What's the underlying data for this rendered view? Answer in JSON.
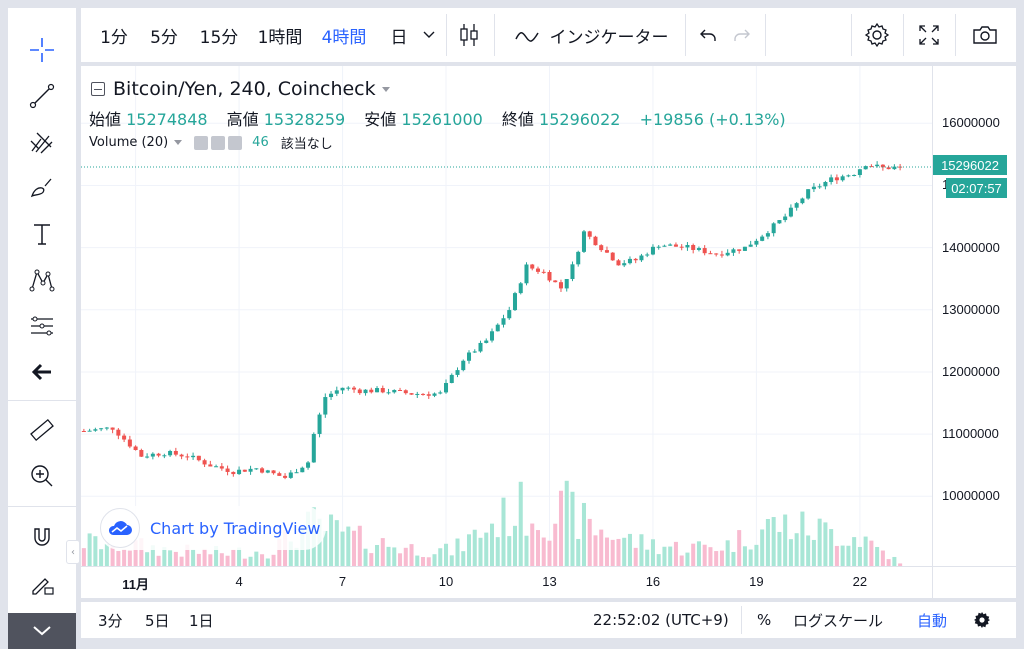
{
  "top_toolbar": {
    "intervals": [
      {
        "label": "1分",
        "active": false
      },
      {
        "label": "5分",
        "active": false
      },
      {
        "label": "15分",
        "active": false
      },
      {
        "label": "1時間",
        "active": false
      },
      {
        "label": "4時間",
        "active": true
      },
      {
        "label": "日",
        "active": false
      }
    ],
    "indicators_label": "インジケーター"
  },
  "legend": {
    "title": "Bitcoin/Yen, 240, Coincheck",
    "open_label": "始値",
    "open": "15274848",
    "high_label": "高値",
    "high": "15328259",
    "low_label": "安値",
    "low": "15261000",
    "close_label": "終値",
    "close": "15296022",
    "change": "+19856 (+0.13%)",
    "volume_label": "Volume (20)",
    "volume_value": "46",
    "volume_na": "該当なし"
  },
  "last_price_tag": "15296022",
  "countdown": "02:07:57",
  "watermark": "Chart by TradingView",
  "bottom_bar": {
    "ranges": [
      "3分",
      "5日",
      "1日"
    ],
    "clock": "22:52:02 (UTC+9)",
    "percent_label": "%",
    "log_label": "ログスケール",
    "auto_label": "自動"
  },
  "colors": {
    "up": "#26a69a",
    "down": "#ef5350",
    "vol_up": "#a8e6d6",
    "vol_down": "#f8bbd0",
    "accent": "#2962ff"
  },
  "chart_data": {
    "type": "candlestick",
    "ylim": [
      9200000,
      16600000
    ],
    "y_ticks": [
      "16000000",
      "15000000",
      "14000000",
      "13000000",
      "12000000",
      "11000000",
      "10000000"
    ],
    "y_tick_values": [
      16000000,
      15000000,
      14000000,
      13000000,
      12000000,
      11000000,
      10000000
    ],
    "x_ticks": [
      {
        "label": "11月",
        "index": 9,
        "bold": true
      },
      {
        "label": "4",
        "index": 27,
        "bold": false
      },
      {
        "label": "7",
        "index": 45,
        "bold": false
      },
      {
        "label": "10",
        "index": 63,
        "bold": false
      },
      {
        "label": "13",
        "index": 81,
        "bold": false
      },
      {
        "label": "16",
        "index": 99,
        "bold": false
      },
      {
        "label": "19",
        "index": 117,
        "bold": false
      },
      {
        "label": "22",
        "index": 135,
        "bold": false
      }
    ],
    "anchor_index": [
      0,
      5,
      10,
      14,
      18,
      22,
      26,
      30,
      35,
      39,
      40,
      42,
      45,
      48,
      52,
      57,
      62,
      66,
      70,
      74,
      77,
      80,
      83,
      85,
      87,
      90,
      93,
      96,
      100,
      105,
      110,
      115,
      118,
      122,
      126,
      130,
      134,
      136,
      139,
      142
    ],
    "anchor_close": [
      11050000,
      11100000,
      10650000,
      10700000,
      10650000,
      10500000,
      10400000,
      10450000,
      10300000,
      10550000,
      11000000,
      11600000,
      11750000,
      11700000,
      11700000,
      11650000,
      11650000,
      12200000,
      12500000,
      13000000,
      13700000,
      13600000,
      13350000,
      13700000,
      14250000,
      14000000,
      13750000,
      13800000,
      14050000,
      14000000,
      13900000,
      14000000,
      14200000,
      14500000,
      14900000,
      15100000,
      15200000,
      15350000,
      15280000,
      15296022
    ],
    "volume_ylim": [
      0,
      20000
    ],
    "volume_anchor_index": [
      0,
      8,
      16,
      24,
      32,
      40,
      48,
      56,
      64,
      72,
      76,
      80,
      84,
      88,
      96,
      104,
      112,
      120,
      128,
      136,
      142
    ],
    "volume_anchor": [
      4000,
      3500,
      2500,
      2200,
      2500,
      7000,
      4500,
      3000,
      2500,
      7500,
      9500,
      8000,
      9500,
      6500,
      4000,
      3000,
      3500,
      7000,
      6000,
      4500,
      500
    ]
  }
}
